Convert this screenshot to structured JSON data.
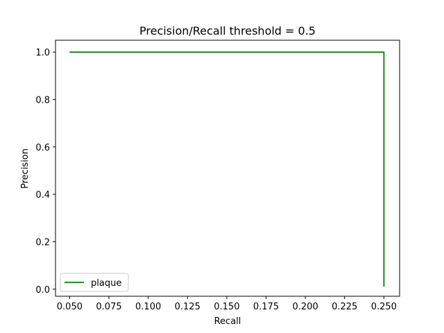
{
  "chart_data": {
    "type": "line",
    "title": "Precision/Recall threshold = 0.5",
    "xlabel": "Recall",
    "ylabel": "Precision",
    "xlim": [
      0.041,
      0.26
    ],
    "ylim": [
      -0.03,
      1.05
    ],
    "xticks": [
      0.05,
      0.075,
      0.1,
      0.125,
      0.15,
      0.175,
      0.2,
      0.225,
      0.25
    ],
    "xtick_labels": [
      "0.050",
      "0.075",
      "0.100",
      "0.125",
      "0.150",
      "0.175",
      "0.200",
      "0.225",
      "0.250"
    ],
    "yticks": [
      0.0,
      0.2,
      0.4,
      0.6,
      0.8,
      1.0
    ],
    "ytick_labels": [
      "0.0",
      "0.2",
      "0.4",
      "0.6",
      "0.8",
      "1.0"
    ],
    "grid": false,
    "legend_position": "lower-left",
    "series": [
      {
        "name": "plaque",
        "color": "#008000",
        "x": [
          0.05,
          0.25,
          0.25
        ],
        "y": [
          1.0,
          1.0,
          0.01
        ]
      }
    ]
  }
}
